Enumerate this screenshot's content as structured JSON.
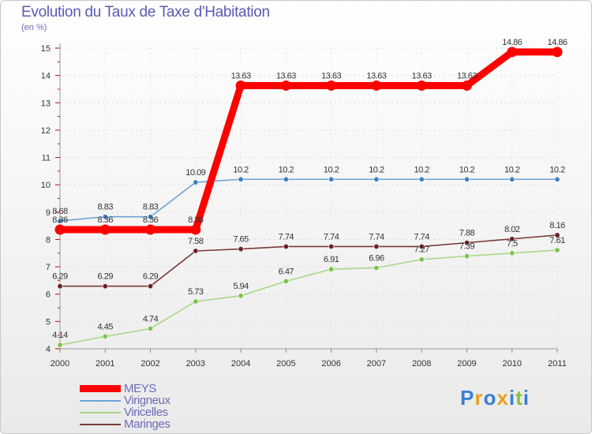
{
  "header": {
    "title": "Evolution du Taux de Taxe d'Habitation",
    "subtitle": "(en %)"
  },
  "logo": {
    "letters": [
      "P",
      "r",
      "o",
      "x",
      "i",
      "t",
      "i"
    ],
    "colors": [
      "#3a7fd0",
      "#e8a020",
      "#3a7fd0",
      "#e8a020",
      "#3a7fd0",
      "#8ac040",
      "#3a7fd0"
    ]
  },
  "chart_data": {
    "type": "line",
    "title": "Evolution du Taux de Taxe d'Habitation",
    "ylabel": "(en %)",
    "xlabel": "",
    "categories": [
      "2000",
      "2001",
      "2002",
      "2003",
      "2004",
      "2005",
      "2006",
      "2007",
      "2008",
      "2009",
      "2010",
      "2011"
    ],
    "ylim": [
      4,
      15
    ],
    "yticks": [
      4,
      5,
      6,
      7,
      8,
      9,
      10,
      11,
      12,
      13,
      14,
      15
    ],
    "series": [
      {
        "name": "Virigneux",
        "color": "#6fa4d6",
        "marker": "#3f7fbf",
        "values": [
          8.68,
          8.83,
          8.83,
          10.09,
          10.2,
          10.2,
          10.2,
          10.2,
          10.2,
          10.2,
          10.2,
          10.2
        ],
        "labels": [
          "8.68",
          "8.83",
          "8.83",
          "10.09",
          "10.2",
          "10.2",
          "10.2",
          "10.2",
          "10.2",
          "10.2",
          "10.2",
          "10.2"
        ]
      },
      {
        "name": "Maringes",
        "color": "#7a3a3a",
        "marker": "#6a2222",
        "values": [
          6.29,
          6.29,
          6.29,
          7.58,
          7.65,
          7.74,
          7.74,
          7.74,
          7.74,
          7.88,
          8.02,
          8.16
        ],
        "labels": [
          "6.29",
          "6.29",
          "6.29",
          "7.58",
          "7.65",
          "7.74",
          "7.74",
          "7.74",
          "7.74",
          "7.88",
          "8.02",
          "8.16"
        ]
      },
      {
        "name": "Viricelles",
        "color": "#a8d88a",
        "marker": "#7cc44a",
        "values": [
          4.14,
          4.45,
          4.74,
          5.73,
          5.94,
          6.47,
          6.91,
          6.96,
          7.27,
          7.39,
          7.5,
          7.61
        ],
        "labels": [
          "4.14",
          "4.45",
          "4.74",
          "5.73",
          "5.94",
          "6.47",
          "6.91",
          "6.96",
          "7.27",
          "7.39",
          "7.5",
          "7.61"
        ]
      },
      {
        "name": "MEYS",
        "color": "#ff0000",
        "marker": "#ff0000",
        "values": [
          8.36,
          8.36,
          8.36,
          8.36,
          13.63,
          13.63,
          13.63,
          13.63,
          13.63,
          13.63,
          14.86,
          14.86
        ],
        "labels": [
          "8.36",
          "8.36",
          "8.36",
          "8.36",
          "13.63",
          "13.63",
          "13.63",
          "13.63",
          "13.63",
          "13.63",
          "14.86",
          "14.86"
        ]
      }
    ],
    "legend": [
      {
        "name": "MEYS",
        "color": "#ff0000"
      },
      {
        "name": "Virigneux",
        "color": "#6fa4d6"
      },
      {
        "name": "Viricelles",
        "color": "#a8d88a"
      },
      {
        "name": "Maringes",
        "color": "#7a3a3a"
      }
    ]
  }
}
